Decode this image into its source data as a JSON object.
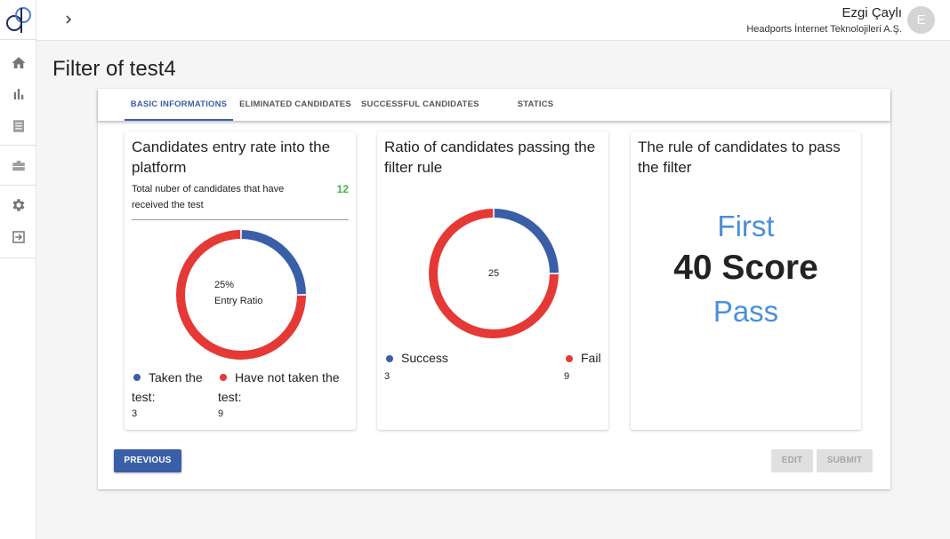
{
  "app": {
    "colors": {
      "primary": "#3a5fa8",
      "success_blue": "#3a5fa8",
      "fail_red": "#e53935",
      "count_green": "#4caf50",
      "rule_blue": "#4a90d9"
    }
  },
  "sidebar": {
    "items": [
      {
        "icon": "home-icon"
      },
      {
        "icon": "bar-chart-icon"
      },
      {
        "icon": "document-icon"
      },
      {
        "icon": "briefcase-icon"
      },
      {
        "icon": "gear-icon"
      },
      {
        "icon": "logout-icon"
      }
    ]
  },
  "header": {
    "user_name": "Ezgi Çaylı",
    "company": "Headports İnternet Teknolojileri A.Ş.",
    "avatar_initial": "E"
  },
  "page": {
    "title": "Filter of test4"
  },
  "tabs": [
    {
      "label": "BASIC INFORMATIONS",
      "active": true
    },
    {
      "label": "ELIMINATED CANDIDATES",
      "active": false
    },
    {
      "label": "SUCCESSFUL CANDIDATES",
      "active": false
    },
    {
      "label": "STATICS",
      "active": false
    }
  ],
  "cards": {
    "entry": {
      "title": "Candidates entry rate into the platform",
      "count_label": "Total nuber of candidates that have received the test",
      "count_value": "12",
      "center_line1": "25%",
      "center_line2": "Entry Ratio",
      "legend": [
        {
          "label": "Taken the test:",
          "value": "3",
          "color": "#3a5fa8"
        },
        {
          "label": "Have not taken the test:",
          "value": "9",
          "color": "#e53935"
        }
      ]
    },
    "ratio": {
      "title": "Ratio of candidates passing the filter rule",
      "center": "25",
      "legend": [
        {
          "label": "Success",
          "value": "3",
          "color": "#3a5fa8"
        },
        {
          "label": "Fail",
          "value": "9",
          "color": "#e53935"
        }
      ]
    },
    "rule": {
      "title": "The rule of candidates to pass the filter",
      "line1": "First",
      "line2": "40 Score",
      "line3": "Pass"
    }
  },
  "chart_data": [
    {
      "type": "pie",
      "categories": [
        "Taken the test",
        "Have not taken the test"
      ],
      "values": [
        3,
        9
      ]
    },
    {
      "type": "pie",
      "categories": [
        "Success",
        "Fail"
      ],
      "values": [
        3,
        9
      ]
    }
  ],
  "buttons": {
    "previous": "PREVIOUS",
    "edit": "EDIT",
    "submit": "SUBMIT"
  }
}
